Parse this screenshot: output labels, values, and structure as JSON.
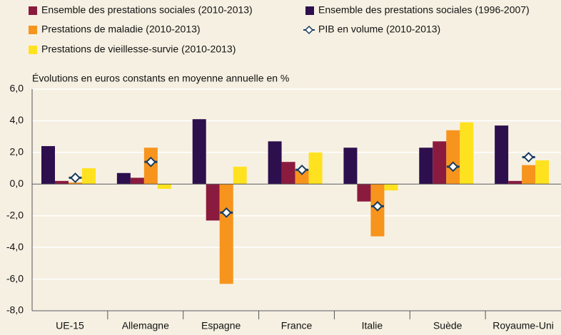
{
  "chart_data": {
    "type": "bar",
    "axis_label": "Évolutions en euros constants en moyenne annuelle en %",
    "categories": [
      "UE-15",
      "Allemagne",
      "Espagne",
      "France",
      "Italie",
      "Suède",
      "Royaume-Uni"
    ],
    "series": [
      {
        "name": "Ensemble des prestations sociales (1996-2007)",
        "color": "#2d0f4e",
        "values": [
          2.4,
          0.7,
          4.1,
          2.7,
          2.3,
          2.3,
          3.7
        ]
      },
      {
        "name": "Ensemble des prestations sociales (2010-2013)",
        "color": "#8a1b3f",
        "values": [
          0.2,
          0.4,
          -2.3,
          1.4,
          -1.1,
          2.7,
          0.2
        ]
      },
      {
        "name": "Prestations de maladie (2010-2013)",
        "color": "#f7941d",
        "values": [
          0.1,
          2.3,
          -6.3,
          0.9,
          -3.3,
          3.4,
          1.2
        ]
      },
      {
        "name": "Prestations de vieillesse-survie (2010-2013)",
        "color": "#ffe21f",
        "values": [
          1.0,
          -0.3,
          1.1,
          2.0,
          -0.4,
          3.9,
          1.5
        ]
      },
      {
        "name": "PIB en volume (2010-2013)",
        "color": "#183c5e",
        "type": "scatter",
        "values": [
          0.4,
          1.4,
          -1.8,
          0.9,
          -1.4,
          1.1,
          1.7
        ]
      }
    ],
    "ylim": [
      -8,
      6
    ],
    "yticks": [
      {
        "value": -8,
        "label": "-8,0"
      },
      {
        "value": -6,
        "label": "-6,0"
      },
      {
        "value": -4,
        "label": "-4,0"
      },
      {
        "value": -2,
        "label": "-2,0"
      },
      {
        "value": 0,
        "label": "0,0"
      },
      {
        "value": 2,
        "label": "2,0"
      },
      {
        "value": 4,
        "label": "4,0"
      },
      {
        "value": 6,
        "label": "6,0"
      }
    ],
    "grid": true
  }
}
